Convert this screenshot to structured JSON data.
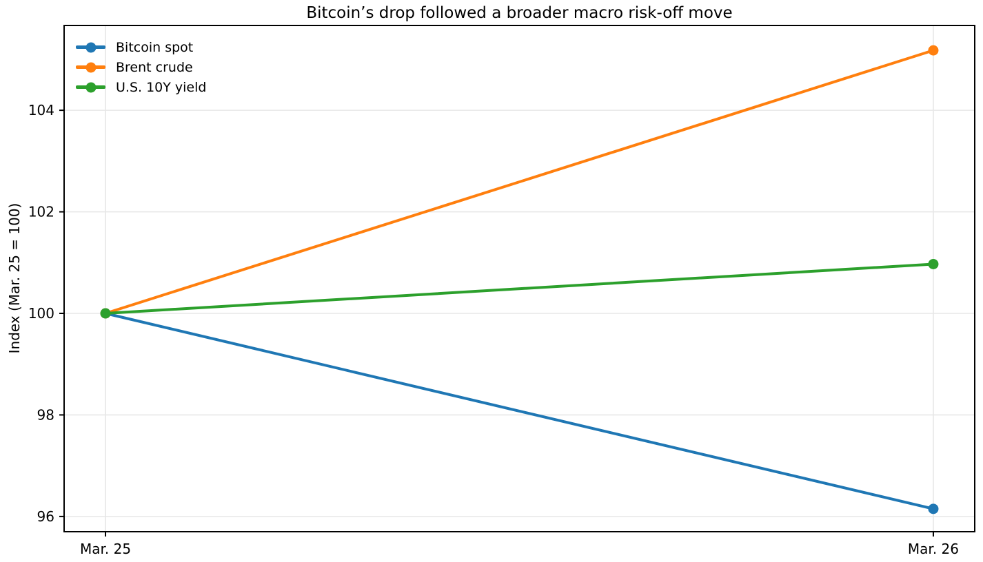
{
  "title": "Bitcoin’s drop followed a broader macro risk-off move",
  "chart_data": {
    "type": "line",
    "categories": [
      "Mar. 25",
      "Mar. 26"
    ],
    "x": [
      0,
      1
    ],
    "series": [
      {
        "name": "Bitcoin spot",
        "color": "#1f77b4",
        "values": [
          100,
          96.15
        ]
      },
      {
        "name": "Brent crude",
        "color": "#ff7f0e",
        "values": [
          100,
          105.18
        ]
      },
      {
        "name": "U.S. 10Y yield",
        "color": "#2ca02c",
        "values": [
          100,
          100.97
        ]
      }
    ],
    "xlabel": "",
    "ylabel": "Index (Mar. 25 = 100)",
    "yticks": [
      96,
      98,
      100,
      102,
      104
    ],
    "ylim": [
      95.7,
      105.67
    ],
    "xlim": [
      -0.05,
      1.05
    ],
    "grid": true,
    "grid_color": "#e7e7e7",
    "axis_color": "#000000",
    "legend_position": "upper-left",
    "legend_frame": false
  }
}
